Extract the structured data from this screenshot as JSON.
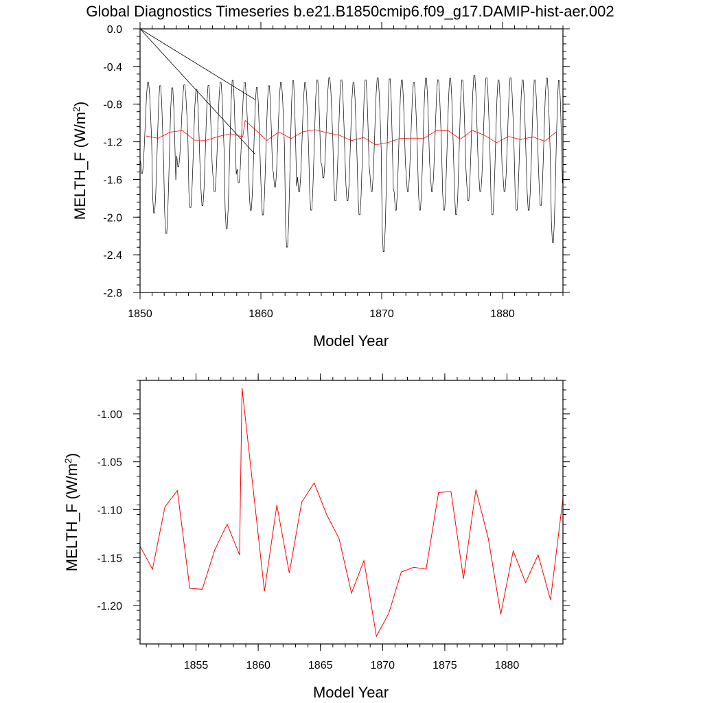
{
  "title": "Global Diagnostics Timeseries b.e21.B1850cmip6.f09_g17.DAMIP-hist-aer.002",
  "colors": {
    "monthly": "#000000",
    "annual": "#ff0000",
    "frame": "#000000"
  },
  "chart_data": [
    {
      "type": "line",
      "xlabel": "Model Year",
      "ylabel": "MELTH_F (W/m",
      "ylabel_sup": "2",
      "ylabel_close": ")",
      "xlim": [
        1850,
        1885
      ],
      "ylim": [
        -2.8,
        0.0
      ],
      "xticks": [
        1850,
        1860,
        1870,
        1880
      ],
      "xtick_labels": [
        "1850",
        "1860",
        "1870",
        "1880"
      ],
      "yticks": [
        0.0,
        -0.4,
        -0.8,
        -1.2,
        -1.6,
        -2.0,
        -2.4,
        -2.8
      ],
      "ytick_labels": [
        "0.0",
        "-0.4",
        "-0.8",
        "-1.2",
        "-1.6",
        "-2.0",
        "-2.4",
        "-2.8"
      ],
      "series": [
        {
          "style": "monthly",
          "color": "#000000",
          "seasonal_min": [
            -1.55,
            -1.98,
            -2.2,
            -1.48,
            -1.92,
            -1.9,
            -1.75,
            -2.15,
            -1.65,
            -1.95,
            -2.0,
            -1.7,
            -2.35,
            -1.75,
            -1.95,
            -1.6,
            -1.85,
            -1.85,
            -2.0,
            -1.75,
            -2.4,
            -1.95,
            -1.75,
            -1.95,
            -1.75,
            -1.95,
            -2.0,
            -1.85,
            -1.75,
            -2.0,
            -1.75,
            -1.95,
            -1.95,
            -1.9,
            -2.3
          ],
          "seasonal_max": [
            -0.55,
            -0.58,
            -0.6,
            -0.58,
            -0.62,
            -0.58,
            -0.55,
            -0.52,
            -0.55,
            -0.6,
            -0.58,
            -0.55,
            -0.52,
            -0.55,
            -0.52,
            -0.5,
            -0.52,
            -0.55,
            -0.52,
            -0.5,
            -0.5,
            -0.52,
            -0.55,
            -0.5,
            -0.52,
            -0.5,
            -0.52,
            -0.47,
            -0.5,
            -0.52,
            -0.5,
            -0.52,
            -0.52,
            -0.5,
            -0.52
          ],
          "wrap_artifact": [
            {
              "x": [
                1850.0,
                1859.5
              ],
              "y": [
                0.0,
                -0.75
              ]
            },
            {
              "x": [
                1850.0,
                1859.5
              ],
              "y": [
                0.0,
                -1.33
              ]
            }
          ]
        },
        {
          "style": "annual",
          "color": "#ff0000",
          "x": [
            1850.5,
            1851.5,
            1852.5,
            1853.5,
            1854.5,
            1855.5,
            1856.5,
            1857.5,
            1858.5,
            1858.7,
            1860.5,
            1861.5,
            1862.5,
            1863.5,
            1864.5,
            1865.5,
            1866.5,
            1867.5,
            1868.5,
            1869.5,
            1870.5,
            1871.5,
            1872.5,
            1873.5,
            1874.5,
            1875.5,
            1876.5,
            1877.5,
            1878.5,
            1879.5,
            1880.5,
            1881.5,
            1882.5,
            1883.5,
            1884.5
          ],
          "y": [
            -1.138,
            -1.162,
            -1.097,
            -1.08,
            -1.182,
            -1.183,
            -1.142,
            -1.115,
            -1.147,
            -0.973,
            -1.185,
            -1.095,
            -1.166,
            -1.092,
            -1.072,
            -1.105,
            -1.13,
            -1.187,
            -1.153,
            -1.232,
            -1.208,
            -1.165,
            -1.16,
            -1.162,
            -1.082,
            -1.081,
            -1.172,
            -1.079,
            -1.13,
            -1.209,
            -1.143,
            -1.176,
            -1.147,
            -1.194,
            -1.088
          ]
        }
      ]
    },
    {
      "type": "line",
      "xlabel": "Model Year",
      "ylabel": "MELTH_F (W/m",
      "ylabel_sup": "2",
      "ylabel_close": ")",
      "xlim": [
        1850.5,
        1884.5
      ],
      "ylim": [
        -1.24,
        -0.965
      ],
      "xticks": [
        1855,
        1860,
        1865,
        1870,
        1875,
        1880
      ],
      "xtick_labels": [
        "1855",
        "1860",
        "1865",
        "1870",
        "1875",
        "1880"
      ],
      "yticks": [
        -1.0,
        -1.05,
        -1.1,
        -1.15,
        -1.2
      ],
      "ytick_labels": [
        "-1.00",
        "-1.05",
        "-1.10",
        "-1.15",
        "-1.20"
      ],
      "series": [
        {
          "style": "annual",
          "color": "#ff0000",
          "x": [
            1850.5,
            1851.5,
            1852.5,
            1853.5,
            1854.5,
            1855.5,
            1856.5,
            1857.5,
            1858.5,
            1858.7,
            1860.5,
            1861.5,
            1862.5,
            1863.5,
            1864.5,
            1865.5,
            1866.5,
            1867.5,
            1868.5,
            1869.5,
            1870.5,
            1871.5,
            1872.5,
            1873.5,
            1874.5,
            1875.5,
            1876.5,
            1877.5,
            1878.5,
            1879.5,
            1880.5,
            1881.5,
            1882.5,
            1883.5,
            1884.5
          ],
          "y": [
            -1.138,
            -1.162,
            -1.097,
            -1.08,
            -1.182,
            -1.183,
            -1.142,
            -1.115,
            -1.147,
            -0.973,
            -1.185,
            -1.095,
            -1.166,
            -1.092,
            -1.072,
            -1.105,
            -1.13,
            -1.187,
            -1.153,
            -1.232,
            -1.208,
            -1.165,
            -1.16,
            -1.162,
            -1.082,
            -1.081,
            -1.172,
            -1.079,
            -1.13,
            -1.209,
            -1.143,
            -1.176,
            -1.147,
            -1.194,
            -1.088
          ]
        }
      ]
    }
  ]
}
